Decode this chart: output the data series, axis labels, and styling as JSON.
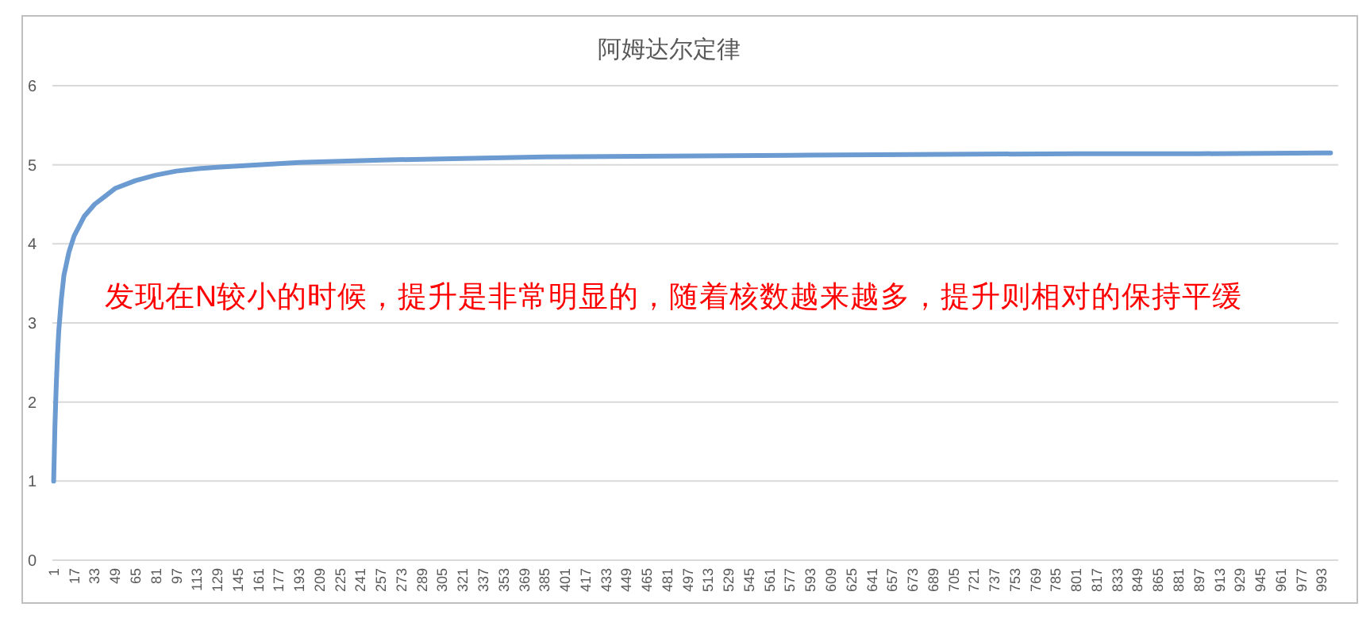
{
  "chart_data": {
    "type": "line",
    "title": "阿姆达尔定律",
    "x": [
      1,
      2,
      3,
      4,
      5,
      7,
      9,
      13,
      17,
      25,
      33,
      41,
      49,
      65,
      81,
      97,
      113,
      129,
      161,
      193,
      257,
      321,
      385,
      481,
      577,
      673,
      801,
      897,
      993,
      1000
    ],
    "series": [
      {
        "color": "#6b9bd1",
        "values": [
          1,
          1.7,
          2.2,
          2.6,
          2.9,
          3.3,
          3.6,
          3.9,
          4.1,
          4.35,
          4.5,
          4.6,
          4.7,
          4.8,
          4.87,
          4.92,
          4.95,
          4.97,
          5.0,
          5.03,
          5.06,
          5.08,
          5.1,
          5.11,
          5.12,
          5.13,
          5.14,
          5.14,
          5.15,
          5.15
        ]
      }
    ],
    "xlim": [
      0,
      1006
    ],
    "xticks": [
      1,
      17,
      33,
      49,
      65,
      81,
      97,
      113,
      129,
      145,
      161,
      177,
      193,
      209,
      225,
      241,
      257,
      273,
      289,
      305,
      321,
      337,
      353,
      369,
      385,
      401,
      417,
      433,
      449,
      465,
      481,
      497,
      513,
      529,
      545,
      561,
      577,
      593,
      609,
      625,
      641,
      657,
      673,
      689,
      705,
      721,
      737,
      753,
      769,
      785,
      801,
      817,
      833,
      849,
      865,
      881,
      897,
      913,
      929,
      945,
      961,
      977,
      993
    ],
    "ylim": [
      0,
      6
    ],
    "yticks": [
      0,
      1,
      2,
      3,
      4,
      5,
      6
    ],
    "grid": "y",
    "marker": "none",
    "line_style": "solid",
    "annotations": [
      "发现在N较小的时候，提升是非常明显的，随着核数越来越多，提升则相对的保持平缓"
    ]
  }
}
